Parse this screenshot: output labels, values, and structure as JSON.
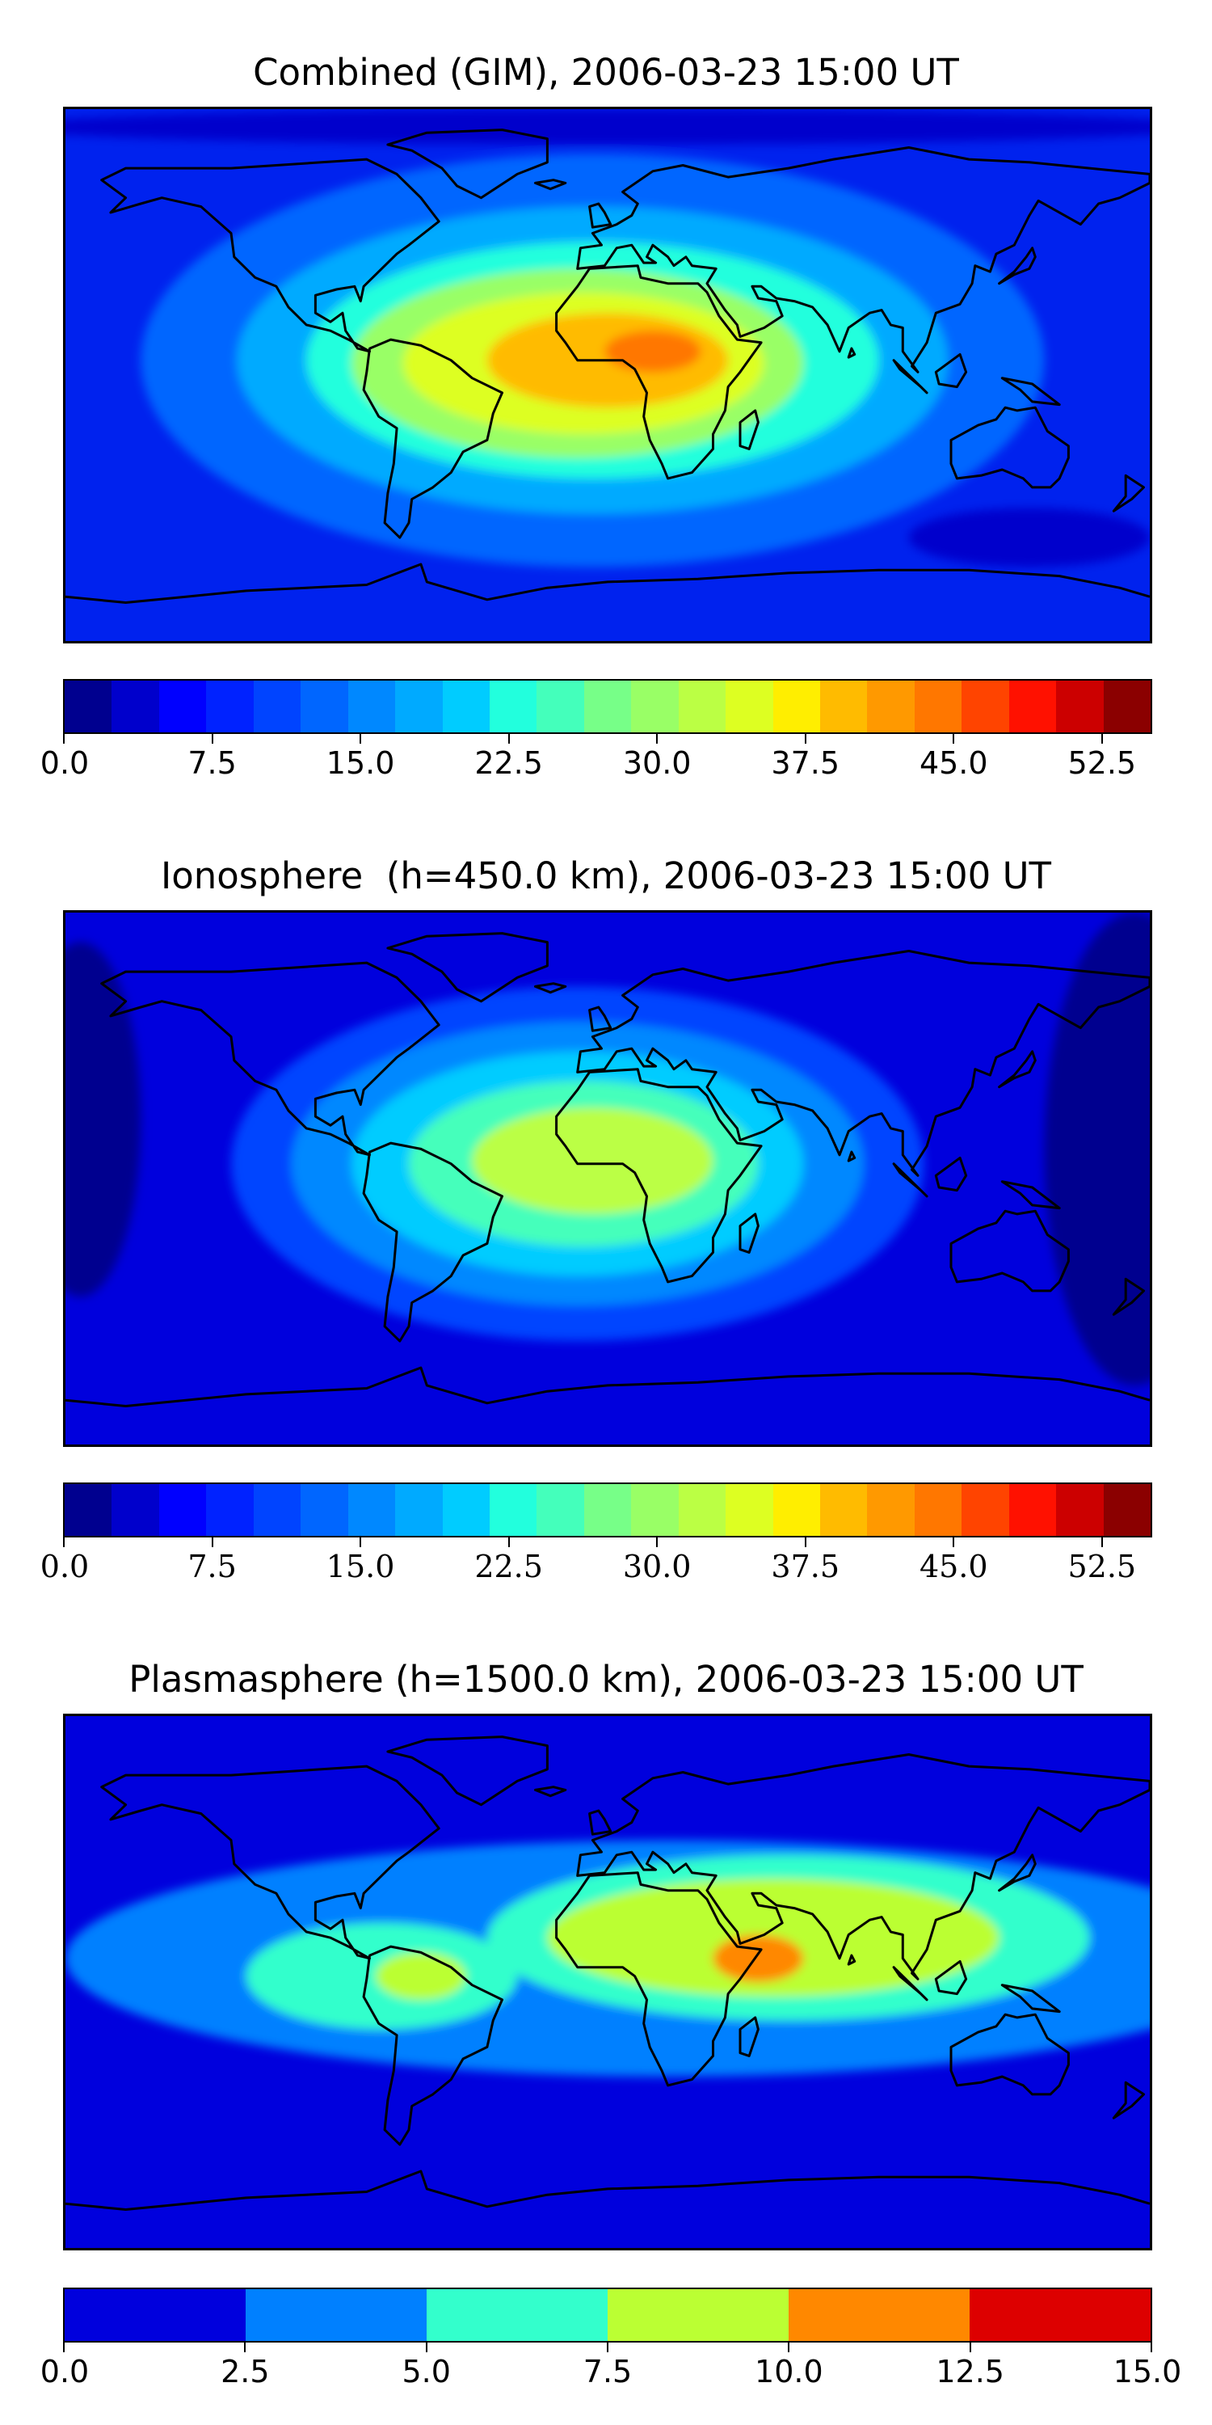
{
  "panels": [
    {
      "title": "Combined (GIM), 2006-03-23 15:00 UT",
      "colorbar": {
        "colors": [
          "#00008f",
          "#0000cc",
          "#0000ff",
          "#0022ff",
          "#0044ff",
          "#0066ff",
          "#0088ff",
          "#00aaff",
          "#00ccff",
          "#22ffdd",
          "#44ffbb",
          "#77ff88",
          "#99ff66",
          "#bbff44",
          "#ddff22",
          "#ffee00",
          "#ffbb00",
          "#ff9900",
          "#ff7700",
          "#ff4400",
          "#ff1100",
          "#cc0000",
          "#8b0000"
        ],
        "ticks": [
          "0.0",
          "7.5",
          "15.0",
          "22.5",
          "30.0",
          "37.5",
          "45.0",
          "52.5"
        ],
        "tick_values": [
          0,
          7.5,
          15,
          22.5,
          30,
          37.5,
          45,
          52.5
        ],
        "range": [
          0,
          55
        ]
      },
      "field": {
        "background": "#0022ee",
        "blobs": [
          {
            "lon": -5,
            "lat": 5,
            "rx": 150,
            "ry": 70,
            "color": "#0066ff"
          },
          {
            "lon": -5,
            "lat": 5,
            "rx": 118,
            "ry": 52,
            "color": "#00aaff"
          },
          {
            "lon": -5,
            "lat": 5,
            "rx": 95,
            "ry": 40,
            "color": "#22ffdd"
          },
          {
            "lon": -10,
            "lat": 4,
            "rx": 75,
            "ry": 32,
            "color": "#99ff66"
          },
          {
            "lon": -8,
            "lat": 4,
            "rx": 60,
            "ry": 24,
            "color": "#ddff22"
          },
          {
            "lon": 0,
            "lat": 5,
            "rx": 40,
            "ry": 16,
            "color": "#ffbb00"
          },
          {
            "lon": 15,
            "lat": 8,
            "rx": 16,
            "ry": 7,
            "color": "#ff7700"
          }
        ],
        "dark": [
          {
            "lon": 0,
            "lat": 84,
            "rx": 200,
            "ry": 6,
            "color": "#0000cc"
          },
          {
            "lon": 140,
            "lat": -55,
            "rx": 40,
            "ry": 10,
            "color": "#0000cc"
          }
        ]
      }
    },
    {
      "title": "Ionosphere  (h=450.0 km), 2006-03-23 15:00 UT",
      "colorbar": {
        "colors": [
          "#00008f",
          "#0000cc",
          "#0000ff",
          "#0022ff",
          "#0044ff",
          "#0066ff",
          "#0088ff",
          "#00aaff",
          "#00ccff",
          "#22ffdd",
          "#44ffbb",
          "#77ff88",
          "#99ff66",
          "#bbff44",
          "#ddff22",
          "#ffee00",
          "#ffbb00",
          "#ff9900",
          "#ff7700",
          "#ff4400",
          "#ff1100",
          "#cc0000",
          "#8b0000"
        ],
        "ticks": [
          "0.0",
          "7.5",
          "15.0",
          "22.5",
          "30.0",
          "37.5",
          "45.0",
          "52.5"
        ],
        "tick_values": [
          0,
          7.5,
          15,
          22.5,
          30,
          37.5,
          45,
          52.5
        ],
        "range": [
          0,
          55
        ]
      },
      "field": {
        "background": "#0000dd",
        "blobs": [
          {
            "lon": -10,
            "lat": 5,
            "rx": 115,
            "ry": 60,
            "color": "#0044ff"
          },
          {
            "lon": -10,
            "lat": 5,
            "rx": 95,
            "ry": 48,
            "color": "#0088ff"
          },
          {
            "lon": -10,
            "lat": 5,
            "rx": 75,
            "ry": 38,
            "color": "#00ccff"
          },
          {
            "lon": -8,
            "lat": 5,
            "rx": 58,
            "ry": 28,
            "color": "#44ffbb"
          },
          {
            "lon": -5,
            "lat": 6,
            "rx": 40,
            "ry": 18,
            "color": "#bbff44"
          }
        ],
        "dark": [
          {
            "lon": 175,
            "lat": 10,
            "rx": 30,
            "ry": 80,
            "color": "#00008f"
          },
          {
            "lon": -175,
            "lat": 20,
            "rx": 20,
            "ry": 60,
            "color": "#00008f"
          }
        ]
      }
    },
    {
      "title": "Plasmasphere (h=1500.0 km), 2006-03-23 15:00 UT",
      "colorbar": {
        "colors": [
          "#0000dd",
          "#0080ff",
          "#33ffcc",
          "#bbff33",
          "#ff8800",
          "#dd0000"
        ],
        "ticks": [
          "0.0",
          "2.5",
          "5.0",
          "7.5",
          "10.0",
          "12.5",
          "15.0"
        ],
        "tick_values": [
          0,
          2.5,
          5,
          7.5,
          10,
          12.5,
          15
        ],
        "range": [
          0,
          15
        ]
      },
      "field": {
        "background": "#0000dd",
        "blobs": [
          {
            "lon": 20,
            "lat": 8,
            "rx": 200,
            "ry": 40,
            "color": "#0080ff"
          },
          {
            "lon": 60,
            "lat": 15,
            "rx": 100,
            "ry": 28,
            "color": "#33ffcc"
          },
          {
            "lon": -75,
            "lat": 2,
            "rx": 45,
            "ry": 18,
            "color": "#33ffcc"
          },
          {
            "lon": 55,
            "lat": 15,
            "rx": 75,
            "ry": 20,
            "color": "#bbff33"
          },
          {
            "lon": -62,
            "lat": 2,
            "rx": 15,
            "ry": 8,
            "color": "#bbff33"
          },
          {
            "lon": 50,
            "lat": 8,
            "rx": 15,
            "ry": 8,
            "color": "#ff8800"
          }
        ],
        "dark": []
      }
    }
  ]
}
